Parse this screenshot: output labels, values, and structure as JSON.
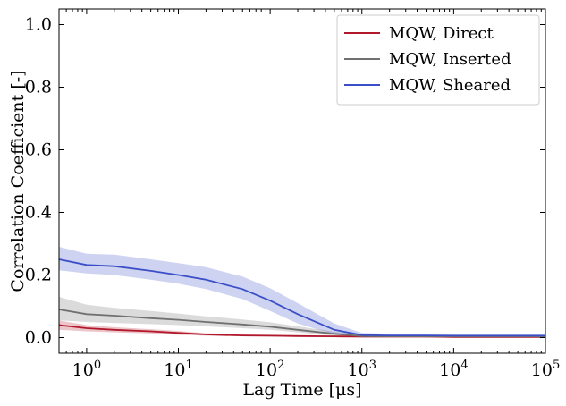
{
  "chart_data": {
    "type": "line",
    "xlabel": "Lag Time [μs]",
    "ylabel": "Correlation Coefficient [-]",
    "xscale": "log",
    "xlim": [
      0.5,
      100000
    ],
    "ylim": [
      -0.05,
      1.05
    ],
    "x_tick_labels": [
      {
        "base": "10",
        "exp": "0"
      },
      {
        "base": "10",
        "exp": "1"
      },
      {
        "base": "10",
        "exp": "2"
      },
      {
        "base": "10",
        "exp": "3"
      },
      {
        "base": "10",
        "exp": "4"
      },
      {
        "base": "10",
        "exp": "5"
      }
    ],
    "y_tick_labels": [
      "0.0",
      "0.2",
      "0.4",
      "0.6",
      "0.8",
      "1.0"
    ],
    "grid": false,
    "legend_position": "top-right",
    "series": [
      {
        "name": "MQW, Direct",
        "color": "#b2182b",
        "x": [
          0.5,
          1,
          2,
          5,
          10,
          20,
          50,
          100,
          200,
          500,
          1000,
          2000,
          5000,
          10000,
          100000
        ],
        "y": [
          0.04,
          0.03,
          0.025,
          0.02,
          0.015,
          0.01,
          0.007,
          0.006,
          0.005,
          0.004,
          0.003,
          0.003,
          0.003,
          0.002,
          0.002
        ],
        "lower": [
          0.025,
          0.02,
          0.017,
          0.013,
          0.009,
          0.006,
          0.004,
          0.003,
          0.002,
          0.001,
          0.0,
          0.0,
          0.0,
          0.0,
          0.0
        ],
        "upper": [
          0.055,
          0.04,
          0.033,
          0.027,
          0.021,
          0.014,
          0.01,
          0.009,
          0.008,
          0.007,
          0.006,
          0.006,
          0.006,
          0.005,
          0.005
        ]
      },
      {
        "name": "MQW, Inserted",
        "color": "#707070",
        "x": [
          0.5,
          1,
          2,
          5,
          10,
          20,
          50,
          100,
          200,
          500,
          1000,
          2000,
          5000,
          10000,
          100000
        ],
        "y": [
          0.09,
          0.075,
          0.07,
          0.062,
          0.057,
          0.05,
          0.042,
          0.035,
          0.025,
          0.012,
          0.005,
          0.004,
          0.004,
          0.004,
          0.004
        ],
        "lower": [
          0.055,
          0.05,
          0.047,
          0.043,
          0.04,
          0.036,
          0.03,
          0.025,
          0.017,
          0.006,
          0.0,
          0.0,
          0.0,
          0.0,
          0.0
        ],
        "upper": [
          0.13,
          0.105,
          0.095,
          0.085,
          0.077,
          0.068,
          0.058,
          0.049,
          0.036,
          0.019,
          0.01,
          0.008,
          0.008,
          0.008,
          0.008
        ]
      },
      {
        "name": "MQW, Sheared",
        "color": "#3a4fc7",
        "x": [
          0.5,
          1,
          2,
          5,
          10,
          20,
          50,
          100,
          200,
          500,
          1000,
          2000,
          5000,
          10000,
          100000
        ],
        "y": [
          0.25,
          0.232,
          0.228,
          0.213,
          0.2,
          0.185,
          0.155,
          0.118,
          0.075,
          0.025,
          0.008,
          0.007,
          0.007,
          0.006,
          0.006
        ],
        "lower": [
          0.215,
          0.205,
          0.2,
          0.185,
          0.172,
          0.155,
          0.123,
          0.085,
          0.045,
          0.01,
          0.002,
          0.002,
          0.002,
          0.002,
          0.002
        ],
        "upper": [
          0.29,
          0.268,
          0.265,
          0.25,
          0.238,
          0.225,
          0.195,
          0.158,
          0.11,
          0.045,
          0.015,
          0.012,
          0.012,
          0.011,
          0.011
        ]
      }
    ]
  }
}
